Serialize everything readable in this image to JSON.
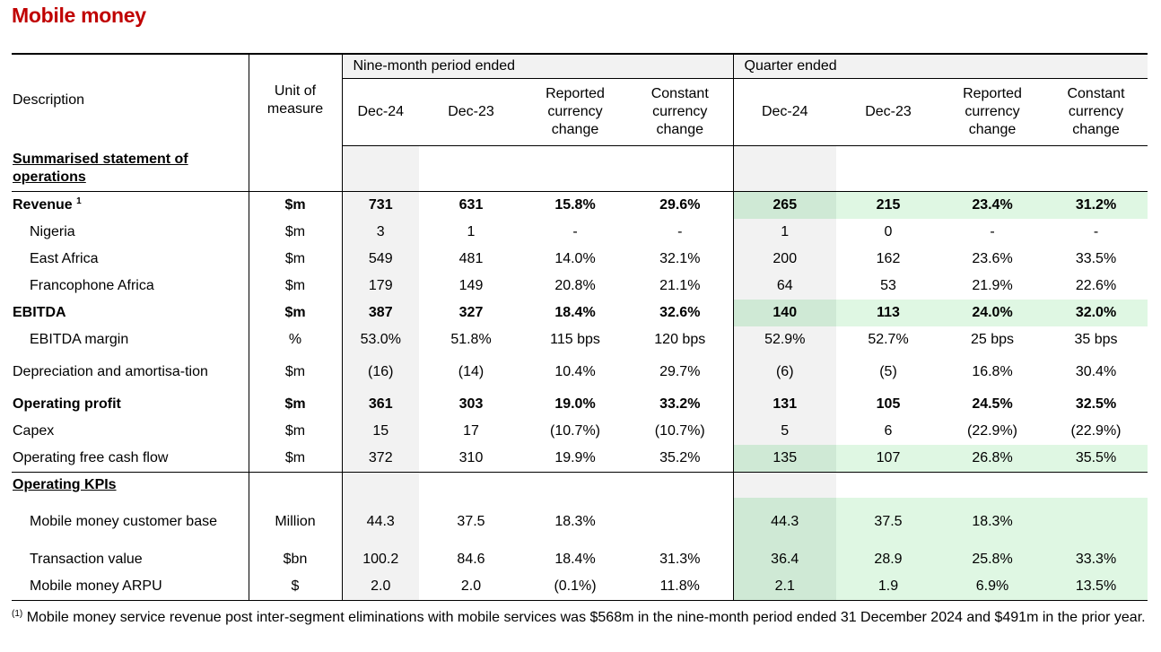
{
  "title": "Mobile money",
  "header": {
    "description": "Description",
    "unit": "Unit of measure",
    "group_nine": "Nine-month period ended",
    "group_quarter": "Quarter ended",
    "col_dec24": "Dec-24",
    "col_dec23": "Dec-23",
    "col_reported": "Reported currency change",
    "col_constant": "Constant currency change"
  },
  "sections": {
    "operations": "Summarised statement of operations",
    "kpis": "Operating KPIs"
  },
  "rows": {
    "revenue": {
      "label": "Revenue",
      "sup": "1",
      "unit": "$m",
      "v": [
        "731",
        "631",
        "15.8%",
        "29.6%",
        "265",
        "215",
        "23.4%",
        "31.2%"
      ]
    },
    "nigeria": {
      "label": "Nigeria",
      "unit": "$m",
      "v": [
        "3",
        "1",
        "-",
        "-",
        "1",
        "0",
        "-",
        "-"
      ]
    },
    "east_africa": {
      "label": "East Africa",
      "unit": "$m",
      "v": [
        "549",
        "481",
        "14.0%",
        "32.1%",
        "200",
        "162",
        "23.6%",
        "33.5%"
      ]
    },
    "francophone": {
      "label": "Francophone Africa",
      "unit": "$m",
      "v": [
        "179",
        "149",
        "20.8%",
        "21.1%",
        "64",
        "53",
        "21.9%",
        "22.6%"
      ]
    },
    "ebitda": {
      "label": "EBITDA",
      "unit": "$m",
      "v": [
        "387",
        "327",
        "18.4%",
        "32.6%",
        "140",
        "113",
        "24.0%",
        "32.0%"
      ]
    },
    "ebitda_margin": {
      "label": "EBITDA margin",
      "unit": "%",
      "v": [
        "53.0%",
        "51.8%",
        "115 bps",
        "120 bps",
        "52.9%",
        "52.7%",
        "25 bps",
        "35 bps"
      ]
    },
    "depreciation": {
      "label": "Depreciation and amortisa-tion",
      "unit": "$m",
      "v": [
        "(16)",
        "(14)",
        "10.4%",
        "29.7%",
        "(6)",
        "(5)",
        "16.8%",
        "30.4%"
      ]
    },
    "operating_profit": {
      "label": "Operating profit",
      "unit": "$m",
      "v": [
        "361",
        "303",
        "19.0%",
        "33.2%",
        "131",
        "105",
        "24.5%",
        "32.5%"
      ]
    },
    "capex": {
      "label": "Capex",
      "unit": "$m",
      "v": [
        "15",
        "17",
        "(10.7%)",
        "(10.7%)",
        "5",
        "6",
        "(22.9%)",
        "(22.9%)"
      ]
    },
    "ofcf": {
      "label": "Operating free cash flow",
      "unit": "$m",
      "v": [
        "372",
        "310",
        "19.9%",
        "35.2%",
        "135",
        "107",
        "26.8%",
        "35.5%"
      ]
    },
    "customer_base": {
      "label": "Mobile money customer base",
      "unit": "Million",
      "v": [
        "44.3",
        "37.5",
        "18.3%",
        "",
        "44.3",
        "37.5",
        "18.3%",
        ""
      ]
    },
    "transaction_value": {
      "label": "Transaction value",
      "unit": "$bn",
      "v": [
        "100.2",
        "84.6",
        "18.4%",
        "31.3%",
        "36.4",
        "28.9",
        "25.8%",
        "33.3%"
      ]
    },
    "arpu": {
      "label": "Mobile money ARPU",
      "unit": "$",
      "v": [
        "2.0",
        "2.0",
        "(0.1%)",
        "11.8%",
        "2.1",
        "1.9",
        "6.9%",
        "13.5%"
      ]
    }
  },
  "footnote": {
    "marker": "(1)",
    "text": "Mobile money service revenue post inter-segment eliminations with mobile services was $568m in the nine-month period ended 31 December 2024 and $491m in the prior year."
  },
  "colors": {
    "title": "#c00000",
    "highlight_green": "#dff7e3",
    "highlight_green_dark": "#cfe9d5",
    "header_grey": "#f2f2f2"
  }
}
